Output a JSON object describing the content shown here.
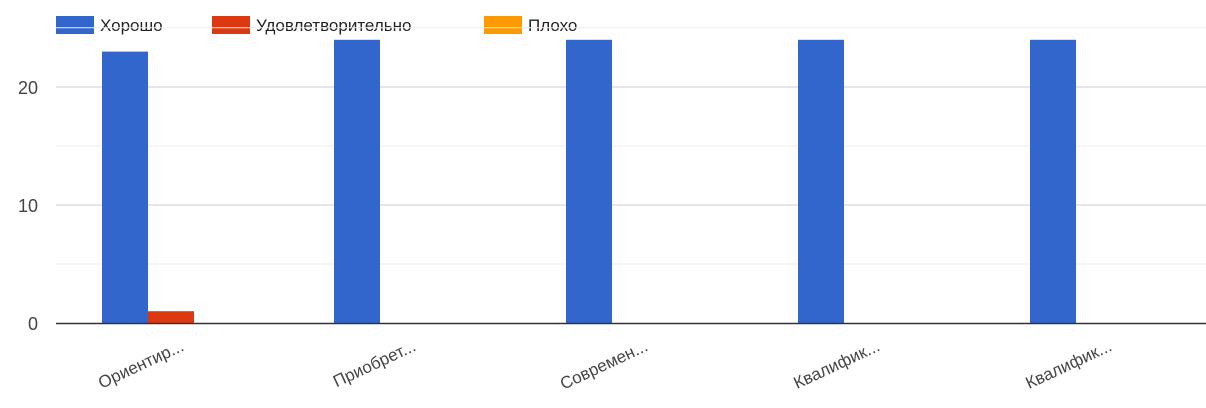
{
  "chart_data": {
    "type": "bar",
    "title": "",
    "xlabel": "",
    "ylabel": "",
    "categories": [
      "Ориентир...",
      "Приобрет...",
      "Современ...",
      "Квалифик...",
      "Квалифик..."
    ],
    "series": [
      {
        "name": "Хорошо",
        "color": "#3366cc",
        "values": [
          23,
          24,
          24,
          24,
          24
        ]
      },
      {
        "name": "Удовлетворительно",
        "color": "#dc3912",
        "values": [
          1,
          0,
          0,
          0,
          0
        ]
      },
      {
        "name": "Плохо",
        "color": "#ff9900",
        "values": [
          0,
          0,
          0,
          0,
          0
        ]
      }
    ],
    "ylim": [
      0,
      24
    ],
    "yticks": [
      0,
      10,
      20
    ],
    "grid": true,
    "legend_position": "top-left"
  }
}
